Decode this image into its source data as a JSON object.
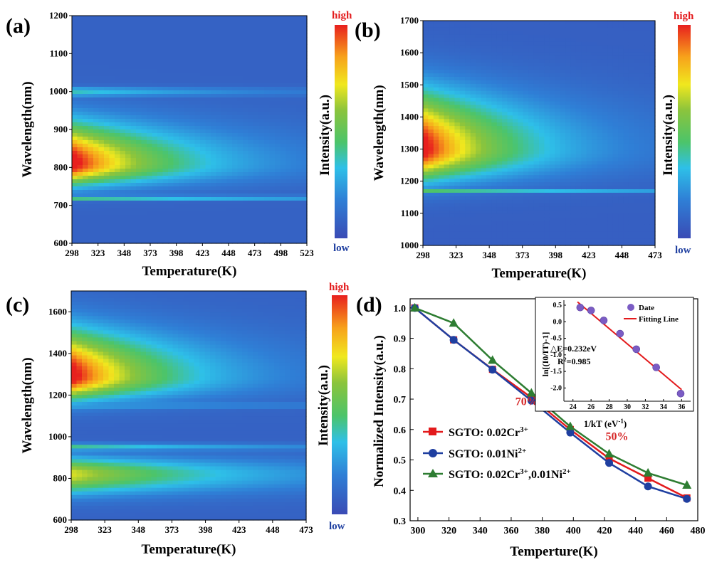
{
  "panel_labels": [
    "(a)",
    "(b)",
    "(c)",
    "(d)"
  ],
  "colorbar": {
    "high_label": "high",
    "low_label": "low",
    "label": "Intensity(a.u.)"
  },
  "chart_data": [
    {
      "type": "heatmap",
      "panel": "(a)",
      "xlabel": "Temperature(K)",
      "ylabel": "Wavelength(nm)",
      "xlim": [
        298,
        523
      ],
      "ylim": [
        600,
        1200
      ],
      "xticks": [
        298,
        323,
        348,
        373,
        398,
        423,
        448,
        473,
        498,
        523
      ],
      "yticks": [
        600,
        700,
        800,
        900,
        1000,
        1100,
        1200
      ],
      "bands": [
        {
          "center": 810,
          "sigma_low": 38,
          "sigma_high": 72,
          "peak": 1.0,
          "decay": 0.9
        },
        {
          "center": 720,
          "sigma_low": 4,
          "sigma_high": 4,
          "peak": 0.45,
          "decay": 0.3
        },
        {
          "center": 1000,
          "sigma_low": 10,
          "sigma_high": 8,
          "peak": 0.3,
          "decay": 0.5
        }
      ],
      "background": 0.08
    },
    {
      "type": "heatmap",
      "panel": "(b)",
      "xlabel": "Temperature(K)",
      "ylabel": "Wavelength(nm)",
      "xlim": [
        298,
        473
      ],
      "ylim": [
        1000,
        1700
      ],
      "xticks": [
        298,
        323,
        348,
        373,
        398,
        423,
        448,
        473
      ],
      "yticks": [
        1000,
        1100,
        1200,
        1300,
        1400,
        1500,
        1600,
        1700
      ],
      "bands": [
        {
          "center": 1300,
          "sigma_low": 65,
          "sigma_high": 120,
          "peak": 1.0,
          "decay": 0.95
        },
        {
          "center": 1170,
          "sigma_low": 5,
          "sigma_high": 5,
          "peak": 0.4,
          "decay": 0.3
        }
      ],
      "background": 0.07
    },
    {
      "type": "heatmap",
      "panel": "(c)",
      "xlabel": "Temperature(K)",
      "ylabel": "Wavelength(nm)",
      "xlim": [
        298,
        473
      ],
      "ylim": [
        600,
        1700
      ],
      "xticks": [
        298,
        323,
        348,
        373,
        398,
        423,
        448,
        473
      ],
      "yticks": [
        600,
        800,
        1000,
        1200,
        1400,
        1600
      ],
      "bands": [
        {
          "center": 1290,
          "sigma_low": 75,
          "sigma_high": 150,
          "peak": 1.0,
          "decay": 0.95
        },
        {
          "center": 820,
          "sigma_low": 65,
          "sigma_high": 55,
          "peak": 0.62,
          "decay": 0.55
        },
        {
          "center": 950,
          "sigma_low": 12,
          "sigma_high": 12,
          "peak": 0.35,
          "decay": 0.4
        },
        {
          "center": 1150,
          "sigma_low": 8,
          "sigma_high": 8,
          "peak": 0.3,
          "decay": 0.3
        }
      ],
      "background": 0.08
    },
    {
      "type": "line",
      "panel": "(d)",
      "xlabel": "Temperture(K)",
      "ylabel": "Normalized Intensity(a.u.)",
      "xlim": [
        295,
        480
      ],
      "ylim": [
        0.3,
        1.03
      ],
      "xticks": [
        300,
        320,
        340,
        360,
        380,
        400,
        420,
        440,
        460,
        480
      ],
      "yticks": [
        0.3,
        0.4,
        0.5,
        0.6,
        0.7,
        0.8,
        0.9,
        1.0
      ],
      "x": [
        298,
        323,
        348,
        373,
        398,
        423,
        448,
        473
      ],
      "series": [
        {
          "name": "SGTO: 0.02Cr3+",
          "name_base": "SGTO: 0.02Cr",
          "name_sup": "3+",
          "color": "#e31a1c",
          "marker": "square",
          "values": [
            1.0,
            0.895,
            0.798,
            0.705,
            0.6,
            0.505,
            0.44,
            0.375
          ]
        },
        {
          "name": "SGTO: 0.01Ni2+",
          "name_base": "SGTO: 0.01Ni",
          "name_sup": "2+",
          "color": "#1f3fa0",
          "marker": "circle",
          "values": [
            1.0,
            0.895,
            0.797,
            0.695,
            0.59,
            0.49,
            0.413,
            0.372
          ]
        },
        {
          "name": "SGTO: 0.02Cr3+,0.01Ni2+",
          "name_base": "SGTO: 0.02Cr",
          "name_sup": "3+",
          "name_mid": ",0.01Ni",
          "name_sup2": "2+",
          "color": "#2e7d32",
          "marker": "triangle",
          "values": [
            1.0,
            0.95,
            0.828,
            0.72,
            0.61,
            0.52,
            0.457,
            0.417
          ]
        }
      ],
      "annotations": [
        {
          "text": "70%",
          "x": 370,
          "y": 0.68,
          "color": "#d62728"
        },
        {
          "text": "50%",
          "x": 428,
          "y": 0.565,
          "color": "#d62728"
        }
      ],
      "legend": "bottom-left",
      "inset": {
        "type": "scatter",
        "xlabel": "1/kT (eV-1)",
        "xlabel_base": "1/kT (eV",
        "xlabel_sup": "-1",
        "xlabel_end": ")",
        "ylabel": "ln[(I0/IT)-1]",
        "xlim": [
          23,
          37
        ],
        "ylim": [
          -2.4,
          0.65
        ],
        "xticks": [
          24,
          26,
          28,
          30,
          32,
          34,
          36
        ],
        "yticks": [
          -2.0,
          -1.5,
          -1.0,
          -0.5,
          0.0,
          0.5
        ],
        "points_x": [
          24.8,
          26.0,
          27.4,
          29.2,
          31.0,
          33.2,
          35.9
        ],
        "points_y": [
          0.43,
          0.34,
          0.04,
          -0.36,
          -0.83,
          -1.38,
          -2.17
        ],
        "fit_x": [
          24.5,
          36.0
        ],
        "fit_y": [
          0.6,
          -2.05
        ],
        "legend_points": "Date",
        "legend_line": "Fitting Line",
        "text_energy": "△E=0.232eV",
        "text_r2": "R2=0.985",
        "text_r2_base": "R",
        "text_r2_sup": "2",
        "text_r2_end": "=0.985",
        "point_color": "#7b5cc4",
        "line_color": "#e31a1c"
      }
    }
  ]
}
